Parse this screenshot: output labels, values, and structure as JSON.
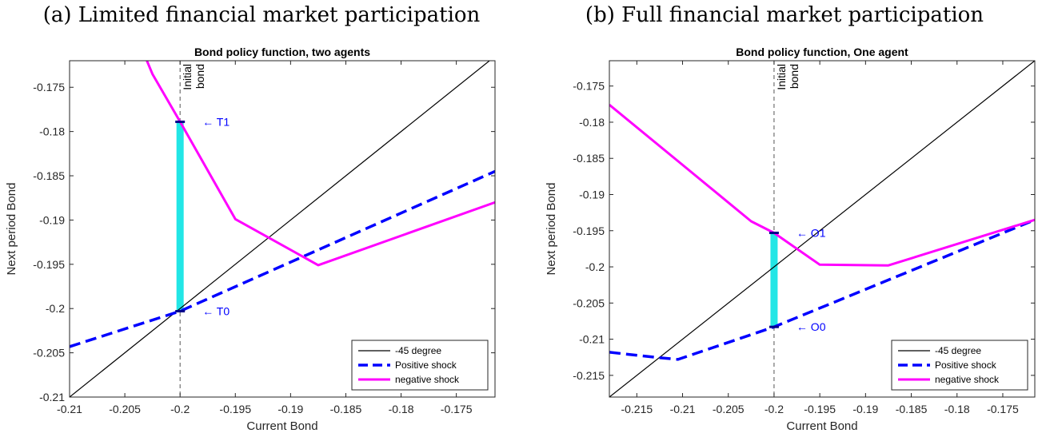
{
  "captions": {
    "a": "(a) Limited financial market participation",
    "b": "(b) Full financial market participation"
  },
  "chart_data": [
    {
      "type": "line",
      "title": "Bond policy function, two agents",
      "xlabel": "Current Bond",
      "ylabel": "Next period Bond",
      "xlim": [
        -0.21,
        -0.1715
      ],
      "ylim": [
        -0.21,
        -0.172
      ],
      "xticks": [
        -0.21,
        -0.205,
        -0.2,
        -0.195,
        -0.19,
        -0.185,
        -0.18,
        -0.175
      ],
      "xtick_labels": [
        "-0.21",
        "-0.205",
        "-0.2",
        "-0.195",
        "-0.19",
        "-0.185",
        "-0.18",
        "-0.175"
      ],
      "yticks": [
        -0.21,
        -0.205,
        -0.2,
        -0.195,
        -0.19,
        -0.185,
        -0.18,
        -0.175
      ],
      "ytick_labels": [
        "-0.21",
        "-0.205",
        "-0.2",
        "-0.195",
        "-0.19",
        "-0.185",
        "-0.18",
        "-0.175"
      ],
      "grid": false,
      "legend_position": "bottom-right",
      "series": [
        {
          "name": "-45 degree",
          "color": "#000000",
          "style": "solid",
          "width": 1.2,
          "x": [
            -0.21,
            -0.1715
          ],
          "y": [
            -0.21,
            -0.1715
          ]
        },
        {
          "name": "Positive shock",
          "color": "#0000ff",
          "style": "dashed",
          "width": 3.5,
          "x": [
            -0.21,
            -0.2,
            -0.1715
          ],
          "y": [
            -0.2043,
            -0.2003,
            -0.1845
          ]
        },
        {
          "name": "negative shock",
          "color": "#ff00ff",
          "style": "solid",
          "width": 3,
          "x": [
            -0.203,
            -0.2025,
            -0.2,
            -0.195,
            -0.1875,
            -0.1715
          ],
          "y": [
            -0.172,
            -0.1735,
            -0.1789,
            -0.1899,
            -0.1951,
            -0.188
          ]
        }
      ],
      "vline": {
        "x": -0.2,
        "label_lines": [
          "Initial",
          "bond"
        ]
      },
      "transition": {
        "x": -0.2,
        "y_from": -0.2003,
        "y_to": -0.1789,
        "color": "#22e6e6"
      },
      "points": [
        {
          "label": "← T1",
          "x": -0.2,
          "y": -0.1789
        },
        {
          "label": "← T0",
          "x": -0.2,
          "y": -0.2003
        }
      ]
    },
    {
      "type": "line",
      "title": "Bond policy function, One agent",
      "xlabel": "Current Bond",
      "ylabel": "Next period Bond",
      "xlim": [
        -0.218,
        -0.1715
      ],
      "ylim": [
        -0.218,
        -0.1715
      ],
      "xticks": [
        -0.215,
        -0.21,
        -0.205,
        -0.2,
        -0.195,
        -0.19,
        -0.185,
        -0.18,
        -0.175
      ],
      "xtick_labels": [
        "-0.215",
        "-0.21",
        "-0.205",
        "-0.2",
        "-0.195",
        "-0.19",
        "-0.185",
        "-0.18",
        "-0.175"
      ],
      "yticks": [
        -0.215,
        -0.21,
        -0.205,
        -0.2,
        -0.195,
        -0.19,
        -0.185,
        -0.18,
        -0.175
      ],
      "ytick_labels": [
        "-0.215",
        "-0.21",
        "-0.205",
        "-0.2",
        "-0.195",
        "-0.19",
        "-0.185",
        "-0.18",
        "-0.175"
      ],
      "grid": false,
      "legend_position": "bottom-right",
      "series": [
        {
          "name": "-45 degree",
          "color": "#000000",
          "style": "solid",
          "width": 1.2,
          "x": [
            -0.218,
            -0.1715
          ],
          "y": [
            -0.218,
            -0.1715
          ]
        },
        {
          "name": "Positive shock",
          "color": "#0000ff",
          "style": "dashed",
          "width": 3.5,
          "x": [
            -0.218,
            -0.213,
            -0.2105,
            -0.2,
            -0.1715
          ],
          "y": [
            -0.2118,
            -0.2125,
            -0.2128,
            -0.2083,
            -0.1935
          ]
        },
        {
          "name": "negative shock",
          "color": "#ff00ff",
          "style": "solid",
          "width": 3,
          "x": [
            -0.218,
            -0.21,
            -0.2025,
            -0.2,
            -0.195,
            -0.1875,
            -0.1715
          ],
          "y": [
            -0.1776,
            -0.1859,
            -0.1937,
            -0.1953,
            -0.1997,
            -0.1998,
            -0.1935
          ]
        }
      ],
      "vline": {
        "x": -0.2,
        "label_lines": [
          "Initial",
          "bond"
        ]
      },
      "transition": {
        "x": -0.2,
        "y_from": -0.2083,
        "y_to": -0.1953,
        "color": "#22e6e6"
      },
      "points": [
        {
          "label": "← O1",
          "x": -0.2,
          "y": -0.1953
        },
        {
          "label": "← O0",
          "x": -0.2,
          "y": -0.2083
        }
      ]
    }
  ]
}
